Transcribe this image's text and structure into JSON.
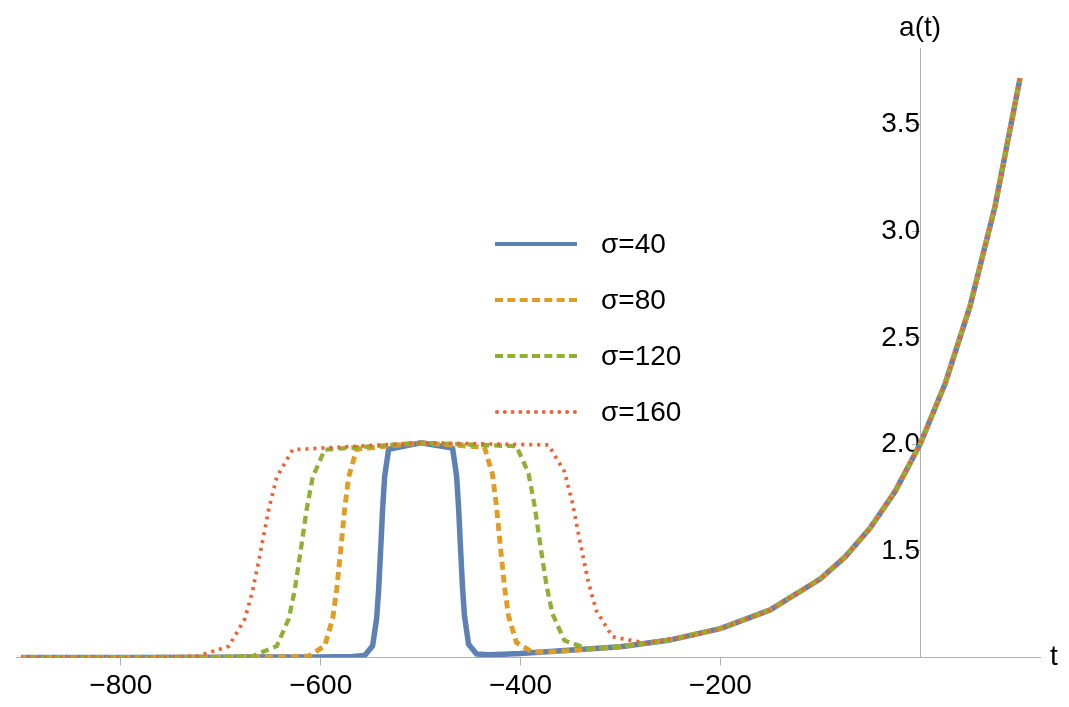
{
  "chart_data": {
    "type": "line",
    "xlabel": "t",
    "ylabel": "a(t)",
    "xlim": [
      -905,
      120
    ],
    "xticks": [
      {
        "value": -800,
        "label": "−800"
      },
      {
        "value": -600,
        "label": "−600"
      },
      {
        "value": -400,
        "label": "−400"
      },
      {
        "value": -200,
        "label": "−200"
      }
    ],
    "ylim": [
      1.0,
      3.86
    ],
    "yticks": [
      1.5,
      {
        "value": 2,
        "label": "2.0"
      },
      2.5,
      {
        "value": 3,
        "label": "3.0"
      },
      3.5
    ],
    "grid": false,
    "legend": "top",
    "marker": "none",
    "series": [
      {
        "name": "σ=40",
        "color": "#5e81b5",
        "line_style": "solid",
        "x": [
          -900,
          -800,
          -700,
          -600,
          -568,
          -556,
          -548,
          -544,
          -542,
          -540,
          -538,
          -536,
          -532,
          -500,
          -468,
          -464,
          -462,
          -460,
          -458,
          -456,
          -452,
          -444,
          -432,
          -400,
          -300,
          -250,
          -200,
          -150,
          -100,
          -75,
          -50,
          -25,
          0,
          25,
          50,
          75,
          100
        ],
        "values": [
          1.0,
          1.0,
          1.001,
          1.002,
          1.004,
          1.009,
          1.055,
          1.183,
          1.318,
          1.504,
          1.698,
          1.848,
          1.977,
          2.007,
          1.982,
          1.853,
          1.704,
          1.51,
          1.324,
          1.191,
          1.062,
          1.016,
          1.012,
          1.018,
          1.05,
          1.082,
          1.135,
          1.223,
          1.368,
          1.472,
          1.607,
          1.779,
          2.0,
          2.284,
          2.649,
          3.117,
          3.718
        ]
      },
      {
        "name": "σ=80",
        "color": "#e19c24",
        "line_style": "dashed",
        "x": [
          -900,
          -800,
          -700,
          -636,
          -612,
          -596,
          -588,
          -584,
          -580,
          -576,
          -572,
          -564,
          -500,
          -436,
          -428,
          -424,
          -420,
          -416,
          -412,
          -404,
          -388,
          -364,
          -300,
          -250,
          -200,
          -150,
          -100,
          -75,
          -50,
          -25,
          0,
          25,
          50,
          75,
          100
        ],
        "values": [
          1.0,
          1.0,
          1.001,
          1.002,
          1.006,
          1.054,
          1.182,
          1.317,
          1.503,
          1.697,
          1.847,
          1.977,
          2.007,
          1.986,
          1.858,
          1.708,
          1.515,
          1.33,
          1.195,
          1.069,
          1.025,
          1.027,
          1.05,
          1.082,
          1.135,
          1.223,
          1.368,
          1.472,
          1.607,
          1.779,
          2.0,
          2.284,
          2.649,
          3.117,
          3.718
        ]
      },
      {
        "name": "σ=120",
        "color": "#8fb032",
        "line_style": "dashed",
        "x": [
          -900,
          -800,
          -704,
          -668,
          -644,
          -632,
          -626,
          -620,
          -614,
          -608,
          -596,
          -500,
          -404,
          -392,
          -386,
          -380,
          -374,
          -368,
          -356,
          -332,
          -296,
          -250,
          -200,
          -150,
          -100,
          -75,
          -50,
          -25,
          0,
          25,
          50,
          75,
          100
        ],
        "values": [
          1.0,
          1.0,
          1.001,
          1.006,
          1.053,
          1.181,
          1.316,
          1.502,
          1.696,
          1.846,
          1.975,
          2.007,
          1.991,
          1.864,
          1.715,
          1.522,
          1.338,
          1.204,
          1.079,
          1.04,
          1.052,
          1.082,
          1.135,
          1.223,
          1.368,
          1.472,
          1.607,
          1.779,
          2.0,
          2.284,
          2.649,
          3.117,
          3.718
        ]
      },
      {
        "name": "σ=160",
        "color": "#eb6235",
        "line_style": "dotted",
        "x": [
          -900,
          -800,
          -772,
          -724,
          -692,
          -676,
          -668,
          -660,
          -652,
          -644,
          -628,
          -500,
          -372,
          -356,
          -348,
          -340,
          -332,
          -324,
          -308,
          -276,
          -228,
          -200,
          -150,
          -100,
          -75,
          -50,
          -25,
          0,
          25,
          50,
          75,
          100
        ],
        "values": [
          1.0,
          1.0,
          1.0,
          1.005,
          1.052,
          1.18,
          1.315,
          1.501,
          1.695,
          1.846,
          1.975,
          2.007,
          1.997,
          1.872,
          1.725,
          1.533,
          1.351,
          1.219,
          1.097,
          1.068,
          1.102,
          1.135,
          1.223,
          1.368,
          1.472,
          1.607,
          1.779,
          2.0,
          2.284,
          2.649,
          3.117,
          3.718
        ]
      }
    ]
  }
}
